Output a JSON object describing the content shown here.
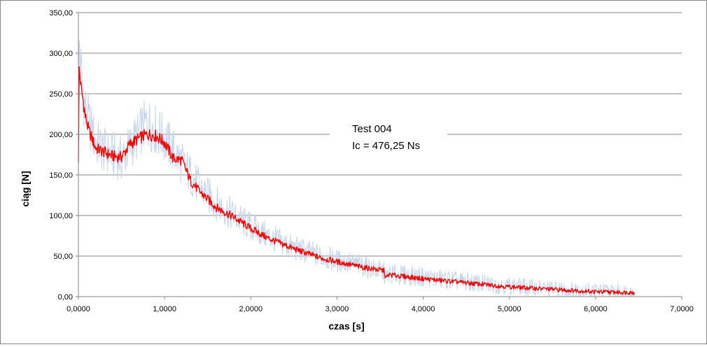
{
  "chart_data": {
    "type": "line",
    "annotation": {
      "line1": "Test 004",
      "line2": "Ic = 476,25 Ns"
    },
    "xlabel": "czas [s]",
    "ylabel": "ciąg [N]",
    "xlim": [
      0,
      7
    ],
    "ylim": [
      0,
      350
    ],
    "x_ticks": [
      "0,0000",
      "1,0000",
      "2,0000",
      "3,0000",
      "4,0000",
      "5,0000",
      "6,0000",
      "7,0000"
    ],
    "y_ticks": [
      "0,00",
      "50,00",
      "100,00",
      "150,00",
      "200,00",
      "250,00",
      "300,00",
      "350,00"
    ],
    "grid": "horizontal",
    "series": [
      {
        "role": "raw",
        "color": "#c6d5ea",
        "x": [
          0,
          0.01,
          0.03,
          0.05,
          0.08,
          0.12,
          0.2,
          0.3,
          0.4,
          0.5,
          0.6,
          0.7,
          0.8,
          0.9,
          1.0,
          1.1,
          1.2,
          1.3,
          1.4,
          1.5,
          1.6,
          1.8,
          2.0,
          2.2,
          2.5,
          2.8,
          3.0,
          3.3,
          3.55,
          3.56,
          3.6,
          4.0,
          4.5,
          5.0,
          5.5,
          6.0,
          6.45
        ],
        "y": [
          170,
          310,
          280,
          255,
          230,
          215,
          190,
          180,
          175,
          170,
          185,
          200,
          215,
          205,
          195,
          180,
          165,
          150,
          135,
          125,
          115,
          100,
          86,
          74,
          60,
          50,
          44,
          38,
          30,
          20,
          28,
          24,
          18,
          13,
          9,
          7,
          5
        ]
      },
      {
        "role": "filtered",
        "color": "#ff0000",
        "x": [
          0,
          0.01,
          0.03,
          0.05,
          0.08,
          0.12,
          0.2,
          0.3,
          0.4,
          0.5,
          0.6,
          0.7,
          0.8,
          0.9,
          1.0,
          1.1,
          1.2,
          1.3,
          1.4,
          1.5,
          1.6,
          1.8,
          2.0,
          2.2,
          2.5,
          2.8,
          3.0,
          3.3,
          3.55,
          3.56,
          3.6,
          4.0,
          4.5,
          5.0,
          5.5,
          6.0,
          6.45
        ],
        "y": [
          170,
          282,
          258,
          245,
          222,
          205,
          183,
          178,
          173,
          172,
          188,
          195,
          200,
          198,
          190,
          170,
          168,
          143,
          130,
          120,
          110,
          98,
          84,
          72,
          59,
          48,
          43,
          36,
          32,
          22,
          27,
          22,
          17,
          12,
          9,
          6,
          5
        ]
      }
    ]
  }
}
